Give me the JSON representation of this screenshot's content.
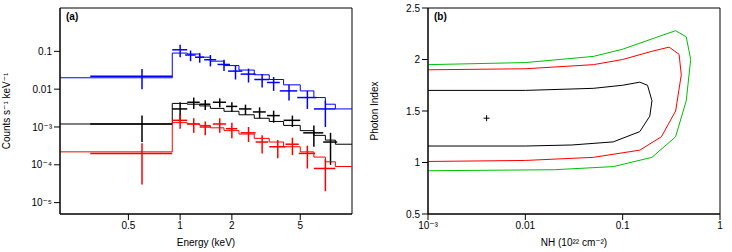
{
  "chart_data": [
    {
      "type": "line",
      "title": "(a)",
      "x_label": "Energy (keV)",
      "y_label": "Counts s⁻¹ keV⁻¹",
      "log": true,
      "xlim": [
        0.2,
        10
      ],
      "ylim": [
        5e-06,
        1.4
      ],
      "xticks": [
        0.5,
        1,
        2,
        5
      ],
      "yticks": [
        {
          "value": 1e-05,
          "label": "10⁻⁵"
        },
        {
          "value": 0.0001,
          "label": "10⁻⁴"
        },
        {
          "value": 0.001,
          "label": "10⁻³"
        },
        0.01,
        0.1
      ],
      "series": [
        {
          "color": "#0000ff",
          "line_style": "steps",
          "x": [
            0.6,
            1.0,
            1.15,
            1.3,
            1.5,
            1.8,
            2.1,
            2.5,
            3.0,
            3.5,
            4.3,
            5.5,
            7.0
          ],
          "values": [
            0.022,
            0.11,
            0.08,
            0.07,
            0.06,
            0.045,
            0.03,
            0.025,
            0.018,
            0.015,
            0.009,
            0.006,
            0.003
          ],
          "xerr": [
            0.3,
            0.1,
            0.08,
            0.08,
            0.12,
            0.15,
            0.2,
            0.25,
            0.3,
            0.3,
            0.5,
            0.7,
            1.0
          ],
          "yerr": [
            0.012,
            0.04,
            0.025,
            0.02,
            0.02,
            0.015,
            0.012,
            0.01,
            0.007,
            0.006,
            0.004,
            0.003,
            0.002
          ],
          "model": {
            "x": [
              0.2,
              0.9,
              1.1,
              1.3,
              1.5,
              1.8,
              2.2,
              2.7,
              3.3,
              4.0,
              5.0,
              6.0,
              7.0,
              8.0,
              10
            ],
            "values": [
              0.02,
              0.09,
              0.085,
              0.07,
              0.055,
              0.042,
              0.032,
              0.024,
              0.018,
              0.013,
              0.009,
              0.006,
              0.004,
              0.003,
              0.003
            ]
          }
        },
        {
          "color": "#000000",
          "line_style": "steps",
          "x": [
            0.6,
            1.0,
            1.2,
            1.4,
            1.7,
            2.0,
            2.4,
            2.9,
            3.5,
            4.5,
            6.0,
            7.5
          ],
          "values": [
            0.0012,
            0.003,
            0.0045,
            0.004,
            0.0045,
            0.0035,
            0.003,
            0.0025,
            0.002,
            0.0015,
            0.0007,
            0.0004
          ],
          "xerr": [
            0.3,
            0.1,
            0.1,
            0.1,
            0.15,
            0.15,
            0.2,
            0.25,
            0.3,
            0.5,
            0.8,
            0.7
          ],
          "yerr": [
            0.0008,
            0.0015,
            0.0015,
            0.0012,
            0.0012,
            0.001,
            0.0009,
            0.0008,
            0.0007,
            0.0005,
            0.0004,
            0.0003
          ],
          "model": {
            "x": [
              0.2,
              0.9,
              1.1,
              1.3,
              1.5,
              1.8,
              2.2,
              2.7,
              3.3,
              4.0,
              5.0,
              6.0,
              7.0,
              8.0,
              10
            ],
            "values": [
              0.0012,
              0.0042,
              0.004,
              0.0036,
              0.0031,
              0.0026,
              0.0021,
              0.0017,
              0.0014,
              0.0011,
              0.0008,
              0.0006,
              0.00045,
              0.00035,
              0.00035
            ]
          }
        },
        {
          "color": "#ff0000",
          "line_style": "steps",
          "x": [
            0.6,
            1.0,
            1.2,
            1.4,
            1.7,
            2.0,
            2.5,
            3.0,
            3.7,
            4.5,
            5.5,
            7.0
          ],
          "values": [
            0.0002,
            0.0015,
            0.0012,
            0.001,
            0.0012,
            0.0009,
            0.0007,
            0.0004,
            0.0003,
            0.00035,
            0.0002,
            8e-05
          ],
          "xerr": [
            0.3,
            0.1,
            0.1,
            0.1,
            0.15,
            0.15,
            0.25,
            0.25,
            0.4,
            0.4,
            0.6,
            1.0
          ],
          "yerr": [
            0.00017,
            0.0006,
            0.0005,
            0.0004,
            0.0005,
            0.0004,
            0.0003,
            0.0002,
            0.00015,
            0.00017,
            0.00012,
            6e-05
          ],
          "model": {
            "x": [
              0.2,
              0.9,
              1.1,
              1.3,
              1.5,
              1.8,
              2.2,
              2.7,
              3.3,
              4.0,
              5.0,
              6.0,
              7.0,
              8.0,
              10
            ],
            "values": [
              0.00022,
              0.0013,
              0.0012,
              0.0011,
              0.00095,
              0.0008,
              0.00065,
              0.0005,
              0.0004,
              0.0003,
              0.00022,
              0.00016,
              0.00012,
              9e-05,
              9e-05
            ]
          }
        }
      ]
    },
    {
      "type": "contour",
      "title": "(b)",
      "x_label": "NH (10²² cm⁻²)",
      "y_label": "Photon Index",
      "log": "x",
      "xlim": [
        0.001,
        1
      ],
      "ylim": [
        0.5,
        2.5
      ],
      "xticks": [
        {
          "value": 0.001,
          "label": "10⁻³"
        },
        0.01,
        0.1,
        1
      ],
      "yticks": [
        0.5,
        1,
        1.5,
        2,
        2.5
      ],
      "series": [
        {
          "color": "#000000",
          "x": [
            0.001,
            0.01,
            0.05,
            0.1,
            0.15,
            0.18,
            0.2,
            0.19,
            0.15,
            0.08,
            0.03,
            0.01,
            0.001
          ],
          "values": [
            1.7,
            1.7,
            1.72,
            1.75,
            1.78,
            1.75,
            1.6,
            1.45,
            1.3,
            1.2,
            1.17,
            1.16,
            1.16
          ]
        },
        {
          "color": "#ff0000",
          "x": [
            0.001,
            0.01,
            0.05,
            0.1,
            0.2,
            0.3,
            0.38,
            0.4,
            0.35,
            0.25,
            0.15,
            0.05,
            0.01,
            0.001
          ],
          "values": [
            1.9,
            1.91,
            1.95,
            2.0,
            2.08,
            2.12,
            2.05,
            1.85,
            1.5,
            1.25,
            1.12,
            1.05,
            1.02,
            1.01
          ]
        },
        {
          "color": "#00c000",
          "x": [
            0.001,
            0.01,
            0.05,
            0.1,
            0.2,
            0.35,
            0.45,
            0.5,
            0.45,
            0.35,
            0.2,
            0.08,
            0.02,
            0.001
          ],
          "values": [
            1.95,
            1.97,
            2.03,
            2.1,
            2.2,
            2.28,
            2.22,
            2.0,
            1.6,
            1.25,
            1.05,
            0.96,
            0.93,
            0.92
          ]
        }
      ],
      "best_fit": {
        "x": [
          0.004
        ],
        "values": [
          1.43
        ],
        "marker": "cross",
        "color": "#000000"
      }
    }
  ]
}
